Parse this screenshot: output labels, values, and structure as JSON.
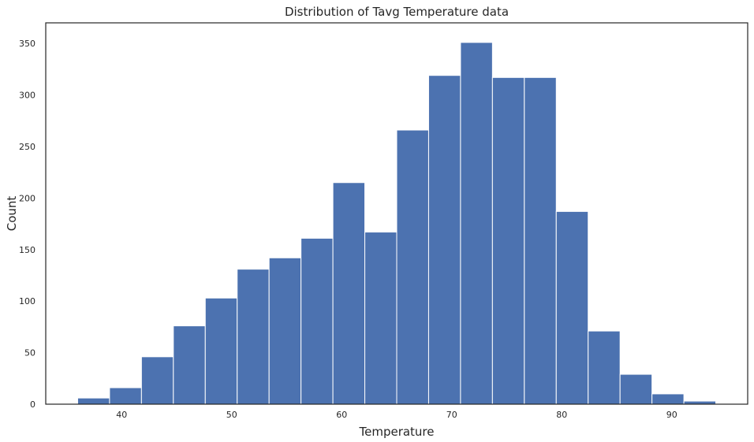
{
  "chart_data": {
    "type": "bar",
    "title": "Distribution of Tavg Temperature data",
    "xlabel": "Temperature",
    "ylabel": "Count",
    "xlim": [
      33.1,
      96.9
    ],
    "ylim": [
      0,
      370
    ],
    "xticks": [
      40,
      50,
      60,
      70,
      80,
      90
    ],
    "yticks": [
      0,
      50,
      100,
      150,
      200,
      250,
      300,
      350
    ],
    "bin_edges": [
      36,
      38.9,
      41.8,
      44.7,
      47.6,
      50.5,
      53.4,
      56.3,
      59.2,
      62.1,
      65,
      67.9,
      70.8,
      73.7,
      76.6,
      79.5,
      82.4,
      85.3,
      88.2,
      91.1,
      94
    ],
    "values": [
      6,
      16,
      46,
      76,
      103,
      131,
      142,
      161,
      215,
      167,
      266,
      319,
      351,
      317,
      317,
      187,
      71,
      29,
      10,
      3
    ],
    "bar_color": "#4c72b0",
    "grid": false,
    "legend": "none"
  }
}
